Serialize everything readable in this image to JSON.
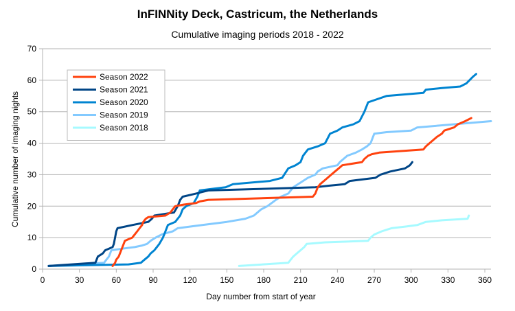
{
  "chart_data": {
    "type": "line",
    "title": "InFINNity Deck, Castricum, the Netherlands",
    "subtitle": "Cumulative imaging periods 2018 - 2022",
    "xlabel": "Day number from start of year",
    "ylabel": "Cumulative number of imaging nights",
    "xlim": [
      0,
      365
    ],
    "ylim": [
      0,
      70
    ],
    "xticks": [
      0,
      30,
      60,
      90,
      120,
      150,
      180,
      210,
      240,
      270,
      300,
      330,
      360
    ],
    "yticks": [
      0,
      10,
      20,
      30,
      40,
      50,
      60,
      70
    ],
    "grid": "horizontal",
    "legend_position": "top-left",
    "series": [
      {
        "name": "Season 2022",
        "color": "#ff420e",
        "points": [
          [
            57,
            1
          ],
          [
            59,
            2
          ],
          [
            60,
            3
          ],
          [
            62,
            4
          ],
          [
            63,
            5
          ],
          [
            64,
            6
          ],
          [
            65,
            7
          ],
          [
            67,
            9
          ],
          [
            70,
            9.5
          ],
          [
            73,
            10
          ],
          [
            75,
            11
          ],
          [
            77,
            12
          ],
          [
            79,
            13
          ],
          [
            81,
            14
          ],
          [
            82,
            15
          ],
          [
            84,
            16
          ],
          [
            86,
            16.5
          ],
          [
            100,
            17
          ],
          [
            104,
            18
          ],
          [
            106,
            19
          ],
          [
            108,
            20
          ],
          [
            115,
            20.5
          ],
          [
            125,
            21
          ],
          [
            128,
            21.5
          ],
          [
            135,
            22
          ],
          [
            220,
            23
          ],
          [
            222,
            24
          ],
          [
            224,
            26
          ],
          [
            226,
            27
          ],
          [
            229,
            28
          ],
          [
            232,
            29
          ],
          [
            235,
            30
          ],
          [
            238,
            31
          ],
          [
            241,
            32
          ],
          [
            244,
            33
          ],
          [
            260,
            34
          ],
          [
            262,
            35
          ],
          [
            265,
            36
          ],
          [
            268,
            36.5
          ],
          [
            274,
            37
          ],
          [
            310,
            38
          ],
          [
            312,
            39
          ],
          [
            315,
            40
          ],
          [
            318,
            41
          ],
          [
            321,
            42
          ],
          [
            325,
            43
          ],
          [
            327,
            44
          ],
          [
            335,
            45
          ],
          [
            338,
            46
          ],
          [
            344,
            47
          ],
          [
            349,
            48
          ]
        ]
      },
      {
        "name": "Season 2021",
        "color": "#004586",
        "points": [
          [
            5,
            1
          ],
          [
            43,
            2
          ],
          [
            44,
            3
          ],
          [
            45,
            4
          ],
          [
            49,
            5
          ],
          [
            51,
            6
          ],
          [
            54,
            6.5
          ],
          [
            57,
            7
          ],
          [
            58,
            8
          ],
          [
            59,
            10
          ],
          [
            60,
            12
          ],
          [
            61,
            13
          ],
          [
            73,
            14
          ],
          [
            86,
            15
          ],
          [
            89,
            16
          ],
          [
            91,
            17
          ],
          [
            107,
            18
          ],
          [
            110,
            20
          ],
          [
            112,
            22
          ],
          [
            114,
            23
          ],
          [
            125,
            24
          ],
          [
            130,
            24.5
          ],
          [
            135,
            25
          ],
          [
            222,
            26
          ],
          [
            233,
            26.5
          ],
          [
            246,
            27
          ],
          [
            250,
            28
          ],
          [
            271,
            29
          ],
          [
            275,
            30
          ],
          [
            283,
            31
          ],
          [
            295,
            32
          ],
          [
            299,
            33
          ],
          [
            301,
            34
          ]
        ]
      },
      {
        "name": "Season 2020",
        "color": "#0084d1",
        "points": [
          [
            5,
            1
          ],
          [
            70,
            1.5
          ],
          [
            80,
            2
          ],
          [
            83,
            3
          ],
          [
            86,
            4
          ],
          [
            88,
            5
          ],
          [
            91,
            6
          ],
          [
            93,
            7
          ],
          [
            95,
            8
          ],
          [
            98,
            10
          ],
          [
            100,
            12
          ],
          [
            102,
            14
          ],
          [
            108,
            15
          ],
          [
            112,
            17
          ],
          [
            114,
            19
          ],
          [
            117,
            20
          ],
          [
            123,
            21
          ],
          [
            126,
            23
          ],
          [
            128,
            25
          ],
          [
            138,
            25.5
          ],
          [
            149,
            26
          ],
          [
            155,
            27
          ],
          [
            185,
            28
          ],
          [
            190,
            28.5
          ],
          [
            195,
            29
          ],
          [
            200,
            32
          ],
          [
            206,
            33
          ],
          [
            210,
            34
          ],
          [
            212,
            36
          ],
          [
            216,
            38
          ],
          [
            224,
            39
          ],
          [
            230,
            40
          ],
          [
            234,
            43
          ],
          [
            240,
            44
          ],
          [
            244,
            45
          ],
          [
            253,
            46
          ],
          [
            258,
            47
          ],
          [
            262,
            50
          ],
          [
            265,
            53
          ],
          [
            280,
            55
          ],
          [
            310,
            56
          ],
          [
            312,
            57
          ],
          [
            325,
            57.5
          ],
          [
            340,
            58
          ],
          [
            345,
            59
          ],
          [
            350,
            61
          ],
          [
            353,
            62
          ]
        ]
      },
      {
        "name": "Season 2019",
        "color": "#83caff",
        "points": [
          [
            5,
            1
          ],
          [
            50,
            2
          ],
          [
            52,
            3
          ],
          [
            54,
            4
          ],
          [
            56,
            6
          ],
          [
            65,
            6.5
          ],
          [
            75,
            7
          ],
          [
            81,
            7.5
          ],
          [
            85,
            8
          ],
          [
            88,
            9
          ],
          [
            92,
            10
          ],
          [
            97,
            11
          ],
          [
            101,
            11.5
          ],
          [
            106,
            12
          ],
          [
            110,
            13
          ],
          [
            130,
            14
          ],
          [
            150,
            15
          ],
          [
            165,
            16
          ],
          [
            172,
            17
          ],
          [
            178,
            19
          ],
          [
            183,
            20
          ],
          [
            190,
            22
          ],
          [
            194,
            23
          ],
          [
            200,
            24
          ],
          [
            204,
            26
          ],
          [
            208,
            27
          ],
          [
            212,
            28
          ],
          [
            216,
            29
          ],
          [
            222,
            30
          ],
          [
            224,
            31
          ],
          [
            228,
            32
          ],
          [
            240,
            33
          ],
          [
            242,
            34
          ],
          [
            245,
            35
          ],
          [
            248,
            36
          ],
          [
            255,
            37
          ],
          [
            260,
            38
          ],
          [
            264,
            39
          ],
          [
            267,
            40
          ],
          [
            270,
            43
          ],
          [
            280,
            43.5
          ],
          [
            300,
            44
          ],
          [
            305,
            45
          ],
          [
            365,
            47
          ]
        ]
      },
      {
        "name": "Season 2018",
        "color": "#a6faff",
        "points": [
          [
            160,
            1
          ],
          [
            200,
            2
          ],
          [
            202,
            3
          ],
          [
            204,
            4
          ],
          [
            207,
            5
          ],
          [
            210,
            6
          ],
          [
            213,
            7
          ],
          [
            215,
            8
          ],
          [
            230,
            8.5
          ],
          [
            265,
            9
          ],
          [
            267,
            10
          ],
          [
            270,
            11
          ],
          [
            276,
            12
          ],
          [
            280,
            12.5
          ],
          [
            284,
            13
          ],
          [
            295,
            13.5
          ],
          [
            305,
            14
          ],
          [
            312,
            15
          ],
          [
            325,
            15.5
          ],
          [
            346,
            16
          ],
          [
            347,
            17
          ]
        ]
      }
    ]
  }
}
